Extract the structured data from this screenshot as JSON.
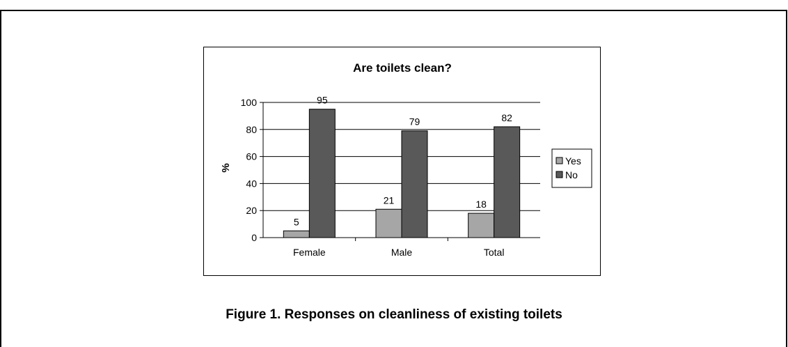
{
  "figure_caption": "Figure 1. Responses on cleanliness of existing toilets",
  "chart_data": {
    "type": "bar",
    "title": "Are toilets clean?",
    "xlabel": "",
    "ylabel": "%",
    "categories": [
      "Female",
      "Male",
      "Total"
    ],
    "series": [
      {
        "name": "Yes",
        "values": [
          5,
          21,
          18
        ],
        "color": "#a6a6a6"
      },
      {
        "name": "No",
        "values": [
          95,
          79,
          82
        ],
        "color": "#595959"
      }
    ],
    "ylim": [
      0,
      100
    ],
    "yticks": [
      "0",
      "20",
      "40",
      "60",
      "80",
      "100"
    ],
    "grid": true,
    "legend": "right"
  }
}
